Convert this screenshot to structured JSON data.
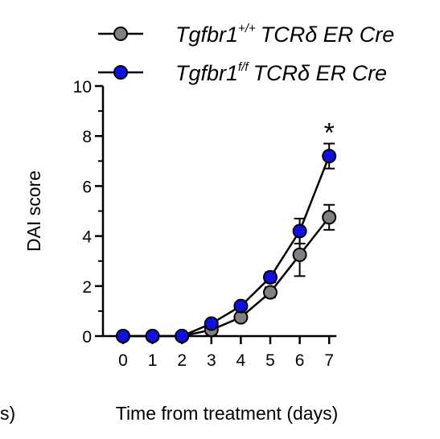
{
  "chart_data": {
    "type": "line",
    "xlabel": "Time from treatment (days)",
    "ylabel": "DAI score",
    "xlim": [
      0,
      7
    ],
    "ylim": [
      0,
      10
    ],
    "x": [
      0,
      1,
      2,
      3,
      4,
      5,
      6,
      7
    ],
    "xticks": [
      "0",
      "1",
      "2",
      "3",
      "4",
      "5",
      "6",
      "7"
    ],
    "yticks": [
      "0",
      "2",
      "4",
      "6",
      "8",
      "10"
    ],
    "grid": false,
    "legend_position": "top",
    "series": [
      {
        "legend_main": "Tgfbr1",
        "legend_sup": "+/+",
        "legend_rest": "TCRδ ER Cre",
        "color": "#808080",
        "values": [
          0,
          0,
          0,
          0.25,
          0.75,
          1.75,
          3.25,
          4.75
        ],
        "error": [
          0,
          0,
          0,
          0.2,
          0.15,
          0.2,
          0.85,
          0.5
        ]
      },
      {
        "legend_main": "Tgfbr1",
        "legend_sup": "f/f",
        "legend_rest": "TCRδ ER Cre",
        "color": "#1010e0",
        "values": [
          0,
          0,
          0,
          0.5,
          1.2,
          2.35,
          4.2,
          7.2
        ],
        "error": [
          0,
          0,
          0,
          0.1,
          0.15,
          0.2,
          0.5,
          0.5
        ]
      }
    ],
    "annotation": "*",
    "annotation_x": 7,
    "left_edge_fragment": "s)"
  }
}
